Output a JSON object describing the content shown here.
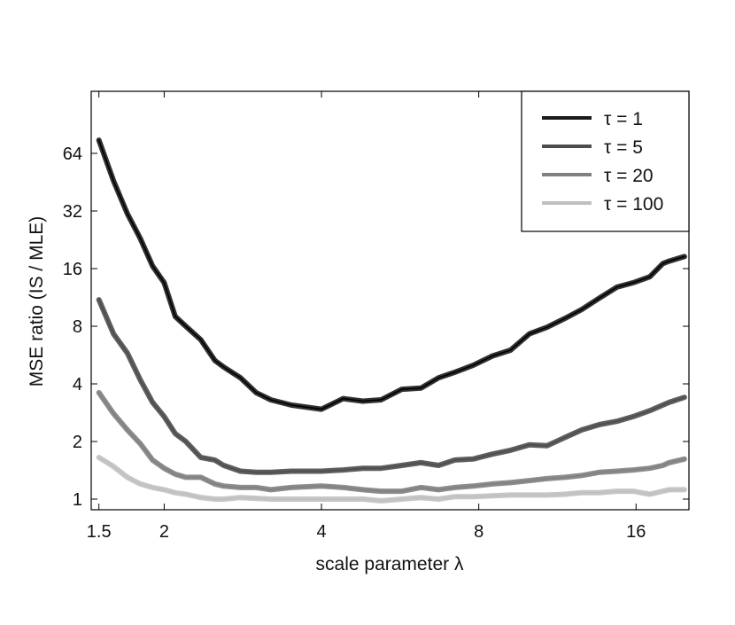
{
  "chart_data": {
    "type": "line",
    "xlabel": "scale parameter λ",
    "ylabel": "MSE ratio (IS / MLE)",
    "x_scale": "log2",
    "y_scale": "log2",
    "xlim": [
      1.45,
      20.2
    ],
    "ylim": [
      0.88,
      135
    ],
    "x_ticks": [
      1.5,
      2,
      4,
      8,
      16
    ],
    "x_tick_labels": [
      "1.5",
      "2",
      "4",
      "8",
      "16"
    ],
    "y_ticks": [
      1,
      2,
      4,
      8,
      16,
      32,
      64
    ],
    "y_tick_labels": [
      "1",
      "2",
      "4",
      "8",
      "16",
      "32",
      "64"
    ],
    "grid": false,
    "legend_position": "top-right",
    "x": [
      1.5,
      1.6,
      1.7,
      1.8,
      1.9,
      2.0,
      2.1,
      2.2,
      2.35,
      2.5,
      2.6,
      2.8,
      3.0,
      3.2,
      3.5,
      4.0,
      4.4,
      4.8,
      5.2,
      5.7,
      6.2,
      6.7,
      7.2,
      7.8,
      8.5,
      9.2,
      10.0,
      10.8,
      11.7,
      12.6,
      13.6,
      14.7,
      15.8,
      17.0,
      18.0,
      18.5,
      19.8
    ],
    "series": [
      {
        "name": "τ = 1",
        "color": "#1a1a1a",
        "values": [
          75,
          46,
          31,
          23,
          16.5,
          13.5,
          9.0,
          8.0,
          6.8,
          5.3,
          4.9,
          4.3,
          3.6,
          3.3,
          3.1,
          2.95,
          3.35,
          3.25,
          3.3,
          3.75,
          3.8,
          4.3,
          4.6,
          5.0,
          5.6,
          6.0,
          7.3,
          7.9,
          8.8,
          9.8,
          11.2,
          12.8,
          13.5,
          14.5,
          17.0,
          17.5,
          18.5
        ]
      },
      {
        "name": "τ = 5",
        "color": "#4d4d4d",
        "values": [
          11.0,
          7.3,
          5.8,
          4.2,
          3.2,
          2.7,
          2.2,
          2.0,
          1.65,
          1.6,
          1.5,
          1.4,
          1.38,
          1.38,
          1.4,
          1.4,
          1.42,
          1.45,
          1.45,
          1.5,
          1.55,
          1.5,
          1.6,
          1.62,
          1.72,
          1.8,
          1.92,
          1.9,
          2.1,
          2.3,
          2.45,
          2.55,
          2.7,
          2.9,
          3.1,
          3.2,
          3.4
        ]
      },
      {
        "name": "τ = 20",
        "color": "#808080",
        "values": [
          3.6,
          2.8,
          2.3,
          1.95,
          1.6,
          1.45,
          1.35,
          1.3,
          1.3,
          1.2,
          1.17,
          1.15,
          1.15,
          1.12,
          1.15,
          1.17,
          1.15,
          1.12,
          1.1,
          1.1,
          1.15,
          1.12,
          1.15,
          1.17,
          1.2,
          1.22,
          1.25,
          1.28,
          1.3,
          1.33,
          1.38,
          1.4,
          1.42,
          1.45,
          1.5,
          1.55,
          1.62
        ]
      },
      {
        "name": "τ = 100",
        "color": "#c0c0c0",
        "values": [
          1.65,
          1.48,
          1.3,
          1.2,
          1.15,
          1.12,
          1.08,
          1.06,
          1.02,
          1.0,
          1.0,
          1.02,
          1.01,
          1.0,
          1.0,
          1.0,
          1.0,
          1.0,
          0.98,
          1.0,
          1.02,
          1.0,
          1.03,
          1.03,
          1.04,
          1.05,
          1.05,
          1.05,
          1.06,
          1.08,
          1.08,
          1.1,
          1.1,
          1.06,
          1.1,
          1.12,
          1.12
        ]
      }
    ]
  }
}
